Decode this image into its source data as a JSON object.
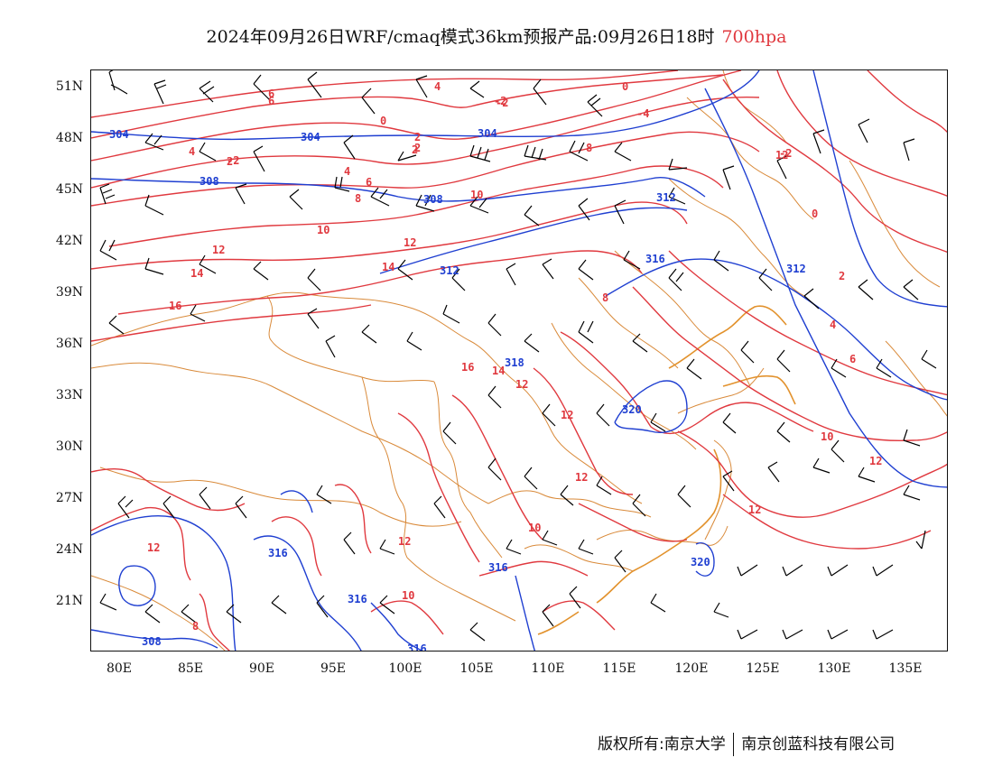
{
  "title": {
    "main": "2024年09月26日WRF/cmaq模式36km预报产品:09月26日18时",
    "level": "700hpa"
  },
  "colors": {
    "temperature": "#e0393f",
    "height": "#1f3fd1",
    "border": "#d98a3a",
    "wind": "#000000"
  },
  "axes": {
    "lat_labels": [
      "51N",
      "48N",
      "45N",
      "42N",
      "39N",
      "36N",
      "33N",
      "30N",
      "27N",
      "24N",
      "21N"
    ],
    "lon_labels": [
      "80E",
      "85E",
      "90E",
      "95E",
      "100E",
      "105E",
      "110E",
      "115E",
      "120E",
      "125E",
      "130E",
      "135E"
    ]
  },
  "contours": {
    "temperature_labels": [
      "6",
      "4",
      "2",
      "0",
      "-2",
      "2",
      "4",
      "2",
      "6",
      "8",
      "-2",
      "-4",
      "0",
      "-2",
      "2",
      "4",
      "6",
      "8",
      "10",
      "10",
      "12",
      "14",
      "16",
      "12",
      "14",
      "12",
      "8",
      "2",
      "4",
      "6",
      "10",
      "12",
      "14",
      "16",
      "12",
      "12",
      "12",
      "12",
      "10",
      "12",
      "10",
      "12",
      "8",
      "-2",
      "0"
    ],
    "height_labels": [
      "304",
      "304",
      "304",
      "308",
      "308",
      "312",
      "312",
      "316",
      "312",
      "320",
      "316",
      "316",
      "316",
      "316",
      "308",
      "320",
      "318"
    ]
  },
  "copyright": {
    "left": "版权所有:南京大学",
    "right": "南京创蓝科技有限公司"
  }
}
